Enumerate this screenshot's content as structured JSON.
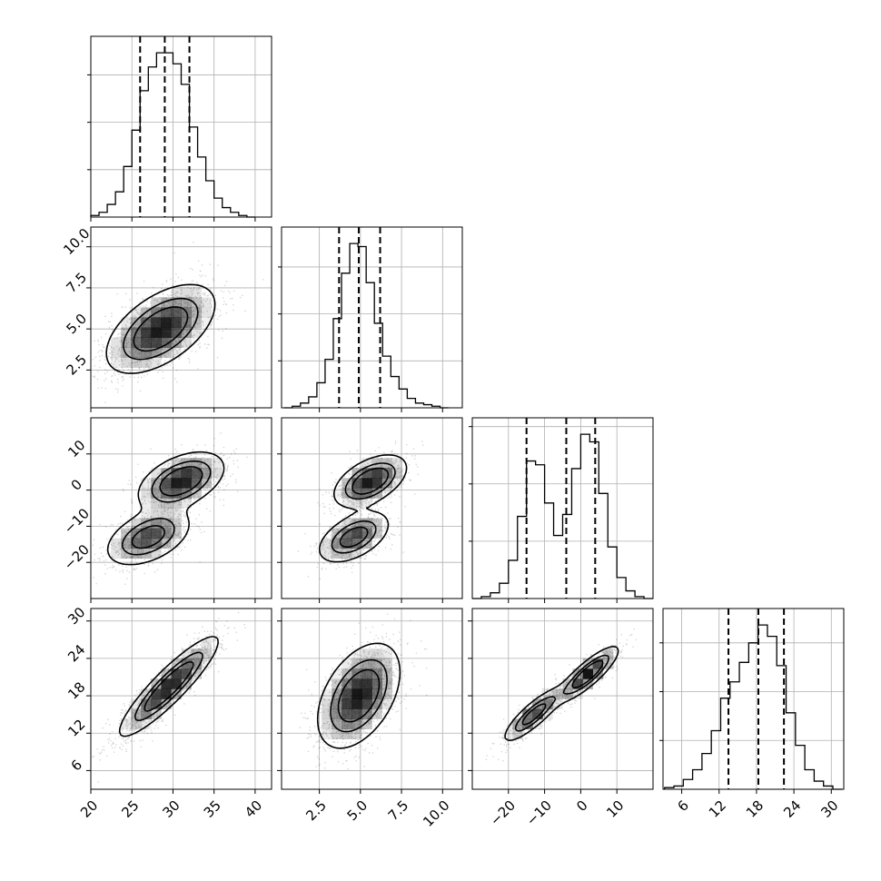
{
  "chart_data": {
    "type": "corner",
    "grid": true,
    "parameters": [
      {
        "index": 0,
        "range": [
          20,
          42
        ],
        "ticks": [
          20,
          25,
          30,
          35,
          40
        ],
        "tick_labels": [
          "20",
          "25",
          "30",
          "35",
          "40"
        ],
        "quantiles": [
          26.0,
          29.0,
          32.0
        ],
        "hist_bins": [
          20.5,
          21.5,
          22.5,
          23.5,
          24.5,
          25.5,
          26.5,
          27.5,
          28.5,
          29.5,
          30.5,
          31.5,
          32.5,
          33.5,
          34.5,
          35.5,
          36.5,
          37.5,
          38.5,
          39.5
        ],
        "hist_counts": [
          1,
          3,
          8,
          16,
          32,
          55,
          80,
          95,
          104,
          104,
          97,
          84,
          57,
          38,
          23,
          12,
          6,
          3,
          1,
          0
        ]
      },
      {
        "index": 1,
        "range": [
          0.2,
          11.2
        ],
        "ticks": [
          2.5,
          5.0,
          7.5,
          10.0
        ],
        "tick_labels": [
          "2.5",
          "5.0",
          "7.5",
          "10.0"
        ],
        "quantiles": [
          3.7,
          4.9,
          6.2
        ],
        "hist_bins": [
          0.6,
          1.1,
          1.6,
          2.1,
          2.6,
          3.1,
          3.6,
          4.1,
          4.6,
          5.1,
          5.6,
          6.1,
          6.6,
          7.1,
          7.6,
          8.1,
          8.6,
          9.1,
          9.6,
          10.1
        ],
        "hist_counts": [
          0,
          1,
          3,
          7,
          16,
          31,
          57,
          86,
          105,
          103,
          80,
          54,
          33,
          20,
          12,
          6,
          3,
          2,
          1,
          0
        ]
      },
      {
        "index": 2,
        "range": [
          -30,
          20
        ],
        "ticks": [
          -20,
          -10,
          0,
          10
        ],
        "tick_labels": [
          "−20",
          "−10",
          "0",
          "10"
        ],
        "quantiles": [
          -15.0,
          -4.0,
          4.0
        ],
        "hist_bins": [
          -28.75,
          -26.25,
          -23.75,
          -21.25,
          -18.75,
          -16.25,
          -13.75,
          -11.25,
          -8.75,
          -6.25,
          -3.75,
          -1.25,
          1.25,
          3.75,
          6.25,
          8.75,
          11.25,
          13.75,
          16.25,
          18.75
        ],
        "hist_counts": [
          0,
          1,
          3,
          8,
          20,
          43,
          72,
          70,
          50,
          33,
          44,
          68,
          86,
          82,
          55,
          27,
          11,
          4,
          1,
          0
        ]
      },
      {
        "index": 3,
        "range": [
          3,
          32
        ],
        "ticks": [
          6,
          12,
          18,
          24,
          30
        ],
        "tick_labels": [
          "6",
          "12",
          "18",
          "24",
          "30"
        ],
        "quantiles": [
          13.5,
          18.3,
          22.4
        ],
        "hist_bins": [
          4.0,
          5.5,
          7.0,
          8.5,
          10.0,
          11.5,
          13.0,
          14.5,
          16.0,
          17.5,
          19.0,
          20.5,
          22.0,
          23.5,
          25.0,
          26.5,
          28.0,
          29.5,
          31.0
        ],
        "hist_counts": [
          1,
          2,
          6,
          12,
          22,
          36,
          56,
          66,
          78,
          90,
          101,
          94,
          76,
          47,
          27,
          12,
          5,
          2,
          0
        ]
      }
    ],
    "pairs": [
      {
        "row": 1,
        "col": 0,
        "components": [
          {
            "mx": 28.5,
            "my": 5.0,
            "sx": 3.3,
            "sy": 1.35,
            "rho": 0.55,
            "w": 1
          }
        ]
      },
      {
        "row": 2,
        "col": 0,
        "components": [
          {
            "mx": 31.0,
            "my": 2.5,
            "sx": 2.6,
            "sy": 4.0,
            "rho": 0.45,
            "w": 0.55
          },
          {
            "mx": 27.0,
            "my": -13.0,
            "sx": 2.6,
            "sy": 4.0,
            "rho": 0.45,
            "w": 0.45
          }
        ]
      },
      {
        "row": 3,
        "col": 0,
        "components": [
          {
            "mx": 29.5,
            "my": 19.5,
            "sx": 3.0,
            "sy": 4.0,
            "rho": 0.9,
            "w": 1
          }
        ]
      },
      {
        "row": 2,
        "col": 1,
        "components": [
          {
            "mx": 5.6,
            "my": 2.5,
            "sx": 1.1,
            "sy": 3.6,
            "rho": 0.5,
            "w": 0.55
          },
          {
            "mx": 4.6,
            "my": -13.0,
            "sx": 1.1,
            "sy": 3.6,
            "rho": 0.5,
            "w": 0.45
          }
        ]
      },
      {
        "row": 3,
        "col": 1,
        "components": [
          {
            "mx": 4.9,
            "my": 18.0,
            "sx": 1.25,
            "sy": 4.2,
            "rho": 0.45,
            "w": 1
          }
        ]
      },
      {
        "row": 3,
        "col": 2,
        "components": [
          {
            "mx": 2.0,
            "my": 21.5,
            "sx": 4.2,
            "sy": 2.2,
            "rho": 0.85,
            "w": 0.55
          },
          {
            "mx": -13.0,
            "my": 15.0,
            "sx": 4.2,
            "sy": 2.2,
            "rho": 0.85,
            "w": 0.45
          }
        ]
      }
    ]
  }
}
